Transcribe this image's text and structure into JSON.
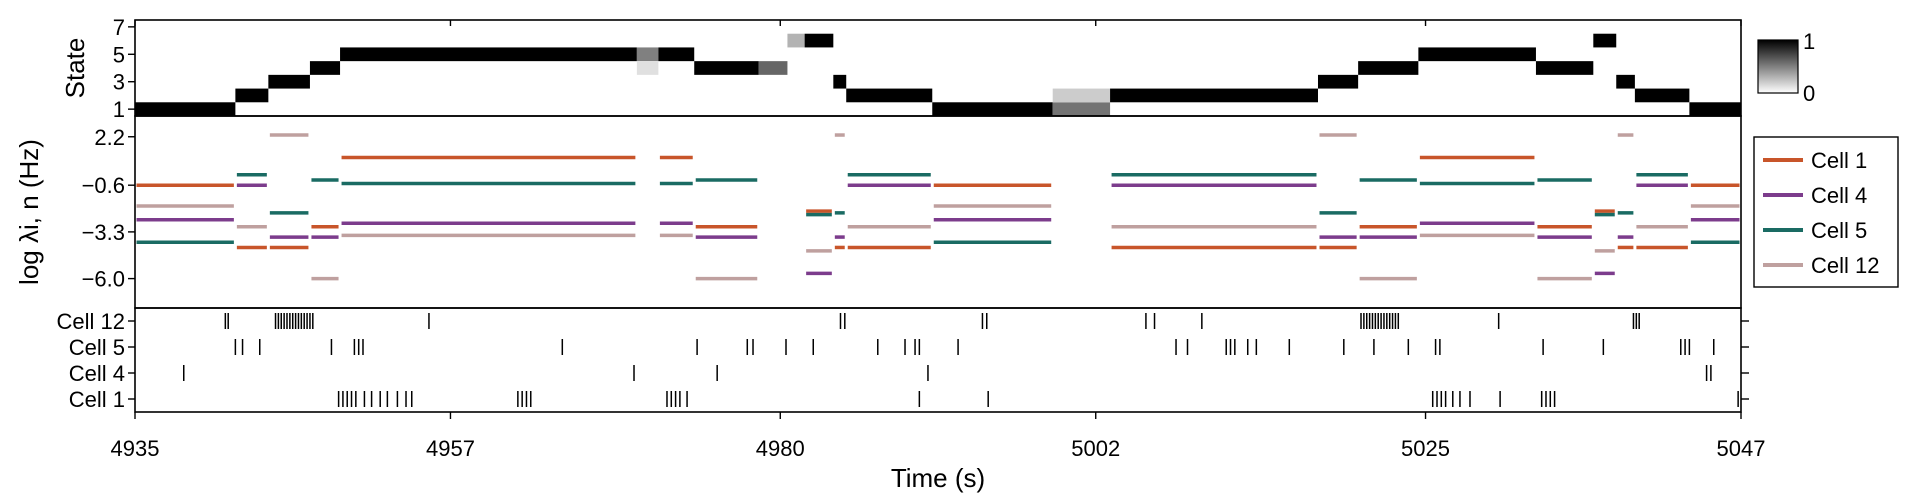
{
  "chart_data": {
    "type": "line",
    "xlabel": "Time (s)",
    "x_ticks": [
      4935,
      4957,
      4980,
      5002,
      5025,
      5047
    ],
    "xlim": [
      4935,
      5047
    ],
    "panels": {
      "state": {
        "ylabel": "State",
        "y_ticks": [
          1,
          3,
          5,
          7
        ],
        "ylim": [
          0.5,
          7.5
        ],
        "colorbar": {
          "max_label": "1",
          "min_label": "0"
        },
        "segments": [
          {
            "x0": 4935,
            "x1": 4942,
            "state": 1,
            "p": 1
          },
          {
            "x0": 4942,
            "x1": 4944.3,
            "state": 2,
            "p": 1
          },
          {
            "x0": 4944.3,
            "x1": 4947.2,
            "state": 3,
            "p": 1
          },
          {
            "x0": 4947.2,
            "x1": 4949.3,
            "state": 4,
            "p": 1
          },
          {
            "x0": 4949.3,
            "x1": 4970,
            "state": 5,
            "p": 1
          },
          {
            "x0": 4970,
            "x1": 4971.5,
            "state": 5,
            "p": 0.5
          },
          {
            "x0": 4970,
            "x1": 4971.5,
            "state": 4,
            "p": 0.12
          },
          {
            "x0": 4971.5,
            "x1": 4974,
            "state": 5,
            "p": 1
          },
          {
            "x0": 4974,
            "x1": 4978.5,
            "state": 4,
            "p": 1
          },
          {
            "x0": 4978.5,
            "x1": 4980.5,
            "state": 4,
            "p": 0.6
          },
          {
            "x0": 4980.5,
            "x1": 4981.7,
            "state": 6,
            "p": 0.3
          },
          {
            "x0": 4981.7,
            "x1": 4983.7,
            "state": 6,
            "p": 1
          },
          {
            "x0": 4983.7,
            "x1": 4984.6,
            "state": 3,
            "p": 1
          },
          {
            "x0": 4984.6,
            "x1": 4990.6,
            "state": 2,
            "p": 1
          },
          {
            "x0": 4990.6,
            "x1": 4999,
            "state": 1,
            "p": 1
          },
          {
            "x0": 4999,
            "x1": 5003,
            "state": 1,
            "p": 0.55
          },
          {
            "x0": 4999,
            "x1": 5003,
            "state": 2,
            "p": 0.2
          },
          {
            "x0": 5003,
            "x1": 5017.5,
            "state": 2,
            "p": 1
          },
          {
            "x0": 5017.5,
            "x1": 5020.3,
            "state": 3,
            "p": 1
          },
          {
            "x0": 5020.3,
            "x1": 5024.5,
            "state": 4,
            "p": 1
          },
          {
            "x0": 5024.5,
            "x1": 5032.7,
            "state": 5,
            "p": 1
          },
          {
            "x0": 5032.7,
            "x1": 5036.7,
            "state": 4,
            "p": 1
          },
          {
            "x0": 5036.7,
            "x1": 5038.3,
            "state": 6,
            "p": 1
          },
          {
            "x0": 5038.3,
            "x1": 5039.6,
            "state": 3,
            "p": 1
          },
          {
            "x0": 5039.6,
            "x1": 5043.4,
            "state": 2,
            "p": 1
          },
          {
            "x0": 5043.4,
            "x1": 5047,
            "state": 1,
            "p": 1
          }
        ]
      },
      "rates": {
        "ylabel": "log λi, n (Hz)",
        "y_ticks": [
          2.2,
          -0.6,
          -3.3,
          -6.0
        ],
        "ylim": [
          -7.7,
          3.4
        ],
        "colors": {
          "Cell 1": "#c8552a",
          "Cell 4": "#7c3c8c",
          "Cell 5": "#1a6b63",
          "Cell 12": "#bfa09f"
        },
        "legend": {
          "entries": [
            "Cell 1",
            "Cell 4",
            "Cell 5",
            "Cell 12"
          ],
          "position": "right"
        },
        "state_rates": {
          "1": {
            "Cell 1": -0.6,
            "Cell 4": -2.6,
            "Cell 5": -3.9,
            "Cell 12": -1.8
          },
          "2": {
            "Cell 1": -4.2,
            "Cell 4": -0.6,
            "Cell 5": 0.0,
            "Cell 12": -3.0
          },
          "3": {
            "Cell 1": -4.2,
            "Cell 4": -3.6,
            "Cell 5": -2.2,
            "Cell 12": 2.3
          },
          "4": {
            "Cell 1": -3.0,
            "Cell 4": -3.6,
            "Cell 5": -0.3,
            "Cell 12": -6.0
          },
          "5": {
            "Cell 1": 1.0,
            "Cell 4": -2.8,
            "Cell 5": -0.5,
            "Cell 12": -3.5
          },
          "6": {
            "Cell 1": -2.1,
            "Cell 4": -5.7,
            "Cell 5": -2.3,
            "Cell 12": -4.4
          }
        }
      },
      "raster": {
        "cells": [
          "Cell 12",
          "Cell 5",
          "Cell 4",
          "Cell 1"
        ],
        "spikes": {
          "Cell 12": [
            4941.3,
            4941.5,
            4944.8,
            4945.0,
            4945.2,
            4945.4,
            4945.6,
            4945.8,
            4946.0,
            4946.2,
            4946.4,
            4946.6,
            4946.8,
            4947.0,
            4947.2,
            4947.4,
            4955.5,
            4984.2,
            4984.5,
            4994.1,
            4994.4,
            5005.5,
            5006.1,
            5009.4,
            5020.5,
            5020.7,
            5020.9,
            5021.1,
            5021.3,
            5021.5,
            5021.7,
            5021.9,
            5022.1,
            5022.3,
            5022.5,
            5022.7,
            5022.9,
            5023.1,
            5030.1,
            5039.5,
            5039.7,
            5039.9
          ],
          "Cell 5": [
            4942.0,
            4942.5,
            4943.7,
            4948.7,
            4950.3,
            4950.6,
            4950.9,
            4964.8,
            4974.2,
            4977.7,
            4978.1,
            4980.4,
            4982.3,
            4986.8,
            4988.7,
            4989.4,
            4989.7,
            4992.4,
            5007.6,
            5008.4,
            5011.1,
            5011.4,
            5011.7,
            5012.6,
            5013.2,
            5015.5,
            5019.3,
            5021.4,
            5023.8,
            5025.7,
            5026.0,
            5033.2,
            5037.4,
            5042.8,
            5043.1,
            5043.4,
            5045.1
          ],
          "Cell 4": [
            4938.4,
            4969.8,
            4975.6,
            4990.3,
            5044.6,
            5044.9
          ],
          "Cell 1": [
            4949.2,
            4949.5,
            4949.8,
            4950.1,
            4950.4,
            4951.0,
            4951.5,
            4952.1,
            4952.6,
            4953.3,
            4953.9,
            4954.3,
            4961.7,
            4962.0,
            4962.3,
            4962.6,
            4972.1,
            4972.4,
            4972.7,
            4973.0,
            4973.5,
            4989.7,
            4994.5,
            5025.5,
            5025.8,
            5026.1,
            5026.4,
            5026.9,
            5027.4,
            5028.1,
            5030.2,
            5033.1,
            5033.4,
            5033.7,
            5034.0,
            5046.8
          ]
        }
      }
    }
  }
}
